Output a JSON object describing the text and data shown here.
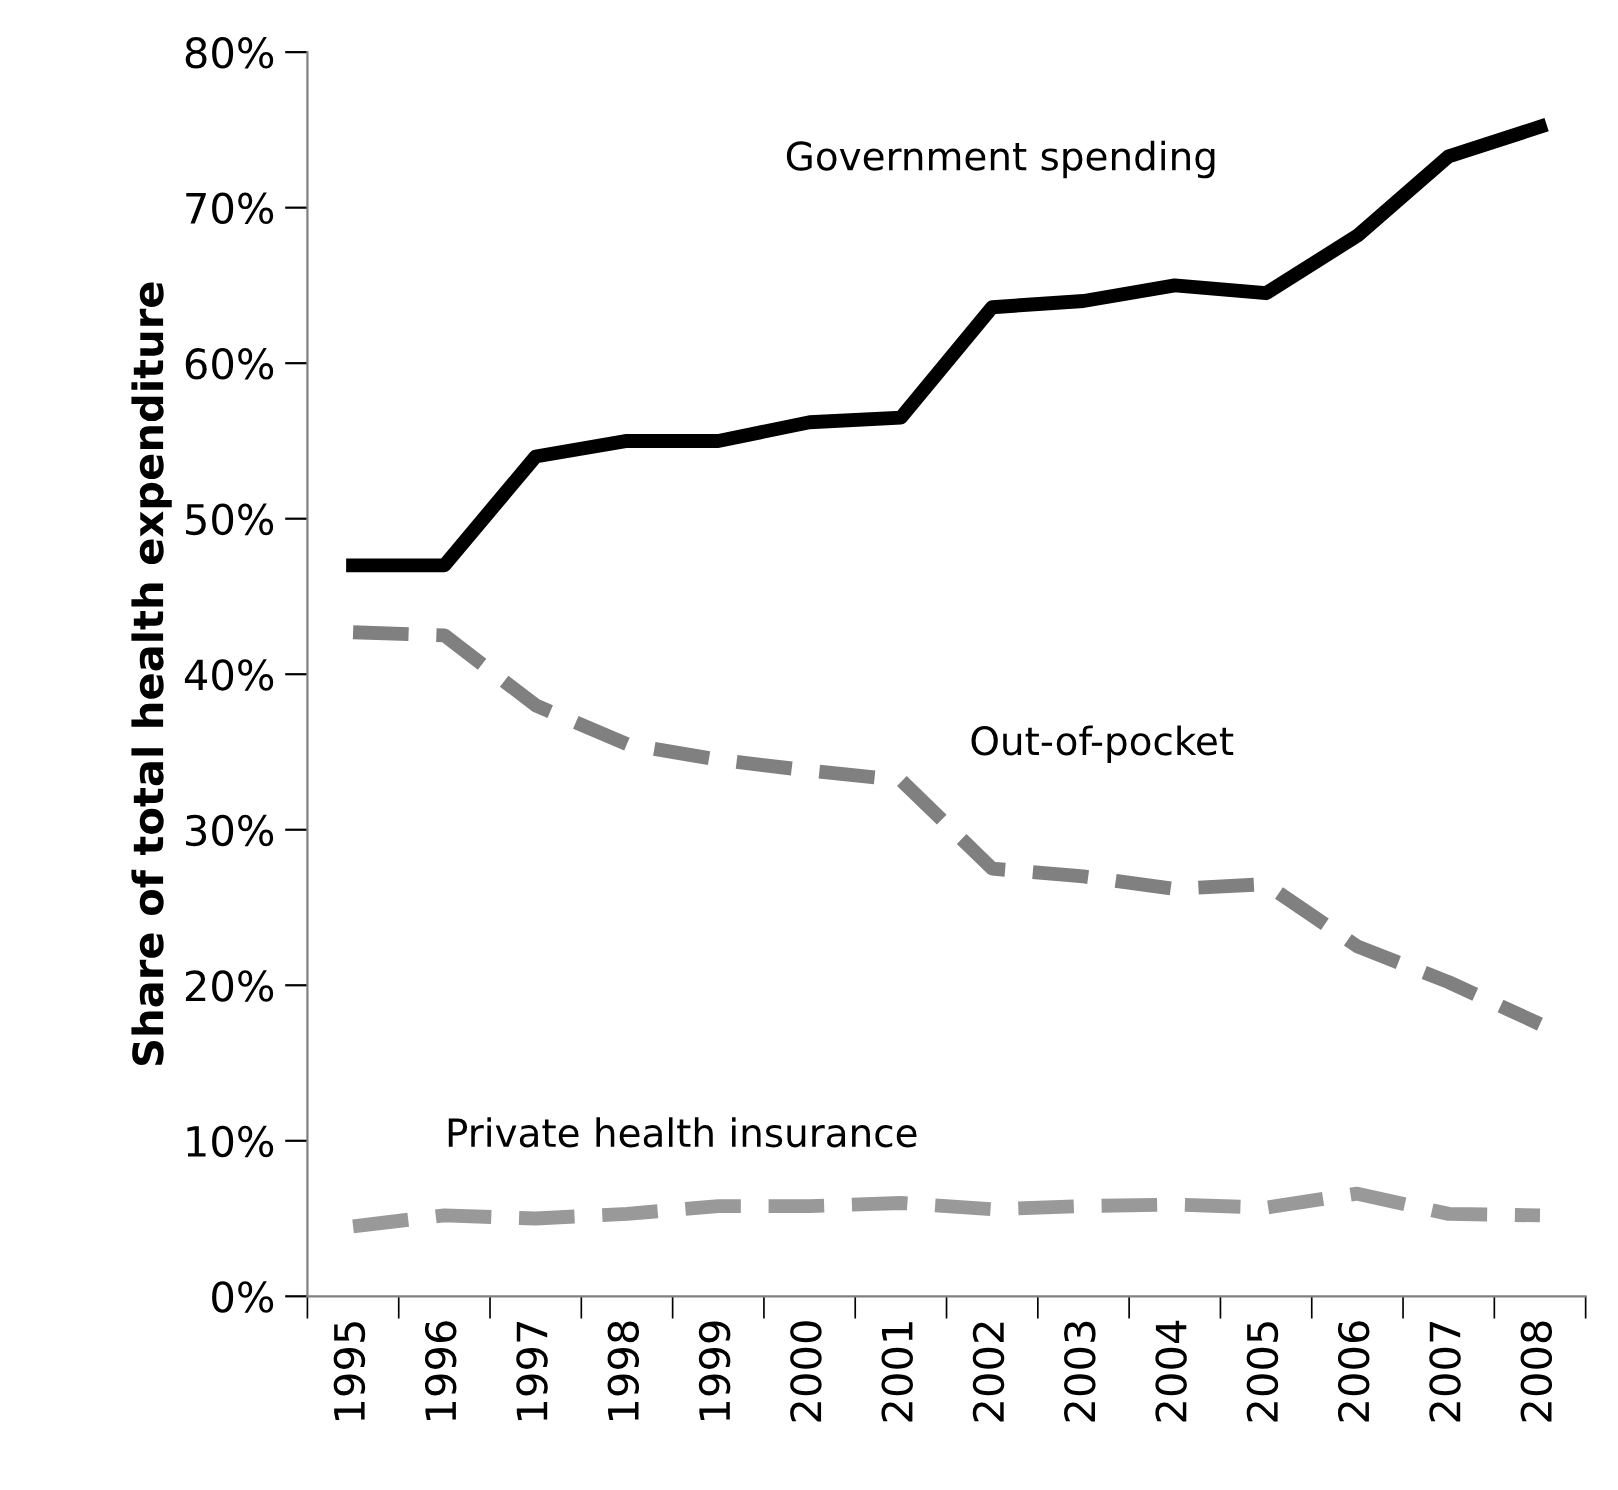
{
  "chart_data": {
    "type": "line",
    "ylabel": "Share of total health expenditure",
    "categories": [
      "1995",
      "1996",
      "1997",
      "1998",
      "1999",
      "2000",
      "2001",
      "2002",
      "2003",
      "2004",
      "2005",
      "2006",
      "2007",
      "2008"
    ],
    "series": [
      {
        "name": "Government spending",
        "color": "#000000",
        "line_style": "solid",
        "values": [
          47,
          47,
          54,
          55,
          55,
          56.2,
          56.5,
          63.6,
          64,
          65,
          64.5,
          68.2,
          73.3,
          75.2
        ]
      },
      {
        "name": "Out-of-pocket",
        "color": "#808080",
        "line_style": "dashed",
        "values": [
          42.7,
          42.5,
          38,
          35.5,
          34.5,
          33.8,
          33.2,
          27.5,
          27,
          26.2,
          26.5,
          22.5,
          20.2,
          17.5
        ]
      },
      {
        "name": "Private health insurance",
        "color": "#999999",
        "line_style": "dashed",
        "values": [
          4.5,
          5.2,
          5,
          5.3,
          5.8,
          5.8,
          6,
          5.6,
          5.8,
          5.9,
          5.7,
          6.6,
          5.3,
          5.2
        ]
      }
    ],
    "ylim": [
      0,
      80
    ],
    "yticks": [
      {
        "value": 0,
        "label": "0%"
      },
      {
        "value": 10,
        "label": "10%"
      },
      {
        "value": 20,
        "label": "20%"
      },
      {
        "value": 30,
        "label": "30%"
      },
      {
        "value": 40,
        "label": "40%"
      },
      {
        "value": 50,
        "label": "50%"
      },
      {
        "value": 60,
        "label": "60%"
      },
      {
        "value": 70,
        "label": "70%"
      },
      {
        "value": 80,
        "label": "80%"
      }
    ],
    "grid": false,
    "legend": false,
    "marker": "none"
  }
}
